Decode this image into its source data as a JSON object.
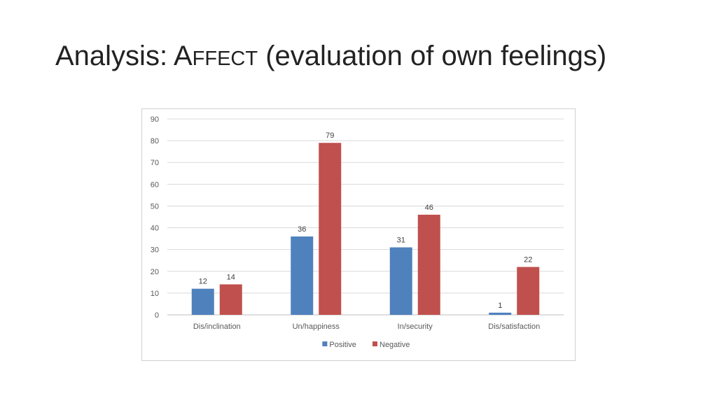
{
  "slide": {
    "title_prefix": "Analysis: ",
    "title_cap": "A",
    "title_smallcaps": "FFECT",
    "title_suffix": " (evaluation of own feelings)"
  },
  "chart_data": {
    "type": "bar",
    "categories": [
      "Dis/inclination",
      "Un/happiness",
      "In/security",
      "Dis/satisfaction"
    ],
    "series": [
      {
        "name": "Positive",
        "values": [
          12,
          36,
          31,
          1
        ],
        "color": "#4f81bd"
      },
      {
        "name": "Negative",
        "values": [
          14,
          79,
          46,
          22
        ],
        "color": "#c0504d"
      }
    ],
    "yticks": [
      "0",
      "10",
      "20",
      "30",
      "40",
      "50",
      "60",
      "70",
      "80",
      "90"
    ],
    "ylim": [
      0,
      90
    ],
    "grid": true,
    "legend_position": "bottom",
    "gridline_color": "#d9d9d9",
    "axis_color": "#bfbfbf"
  }
}
